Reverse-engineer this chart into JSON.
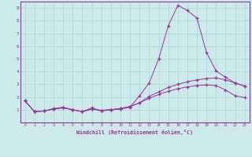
{
  "xlabel": "Windchill (Refroidissement éolien,°C)",
  "background_color": "#cceaea",
  "line_color": "#993399",
  "grid_color": "#b0d8d8",
  "xlim": [
    -0.5,
    23.5
  ],
  "ylim": [
    0,
    9.5
  ],
  "xticks": [
    0,
    1,
    2,
    3,
    4,
    5,
    6,
    7,
    8,
    9,
    10,
    11,
    12,
    13,
    14,
    15,
    16,
    17,
    18,
    19,
    20,
    21,
    22,
    23
  ],
  "yticks": [
    1,
    2,
    3,
    4,
    5,
    6,
    7,
    8,
    9
  ],
  "series1_x": [
    0,
    1,
    2,
    3,
    4,
    5,
    6,
    7,
    8,
    9,
    10,
    11,
    12,
    13,
    14,
    15,
    16,
    17,
    18,
    19,
    20,
    21,
    22,
    23
  ],
  "series1_y": [
    1.7,
    0.85,
    0.9,
    1.1,
    1.2,
    1.0,
    0.85,
    1.15,
    0.9,
    1.0,
    1.05,
    1.2,
    2.1,
    3.1,
    5.0,
    7.6,
    9.2,
    8.8,
    8.2,
    5.5,
    4.05,
    3.55,
    3.1,
    2.85
  ],
  "series2_x": [
    0,
    1,
    2,
    3,
    4,
    5,
    6,
    7,
    8,
    9,
    10,
    11,
    12,
    13,
    14,
    15,
    16,
    17,
    18,
    19,
    20,
    21,
    22,
    23
  ],
  "series2_y": [
    1.7,
    0.85,
    0.9,
    1.05,
    1.15,
    1.0,
    0.85,
    1.05,
    0.95,
    1.0,
    1.1,
    1.25,
    1.55,
    2.05,
    2.4,
    2.75,
    3.0,
    3.2,
    3.35,
    3.45,
    3.5,
    3.35,
    3.1,
    2.85
  ],
  "series3_x": [
    0,
    1,
    2,
    3,
    4,
    5,
    6,
    7,
    8,
    9,
    10,
    11,
    12,
    13,
    14,
    15,
    16,
    17,
    18,
    19,
    20,
    21,
    22,
    23
  ],
  "series3_y": [
    1.7,
    0.85,
    0.9,
    1.05,
    1.15,
    1.0,
    0.85,
    1.05,
    0.95,
    1.0,
    1.1,
    1.25,
    1.55,
    1.9,
    2.2,
    2.45,
    2.65,
    2.8,
    2.9,
    2.95,
    2.9,
    2.55,
    2.1,
    1.95
  ]
}
